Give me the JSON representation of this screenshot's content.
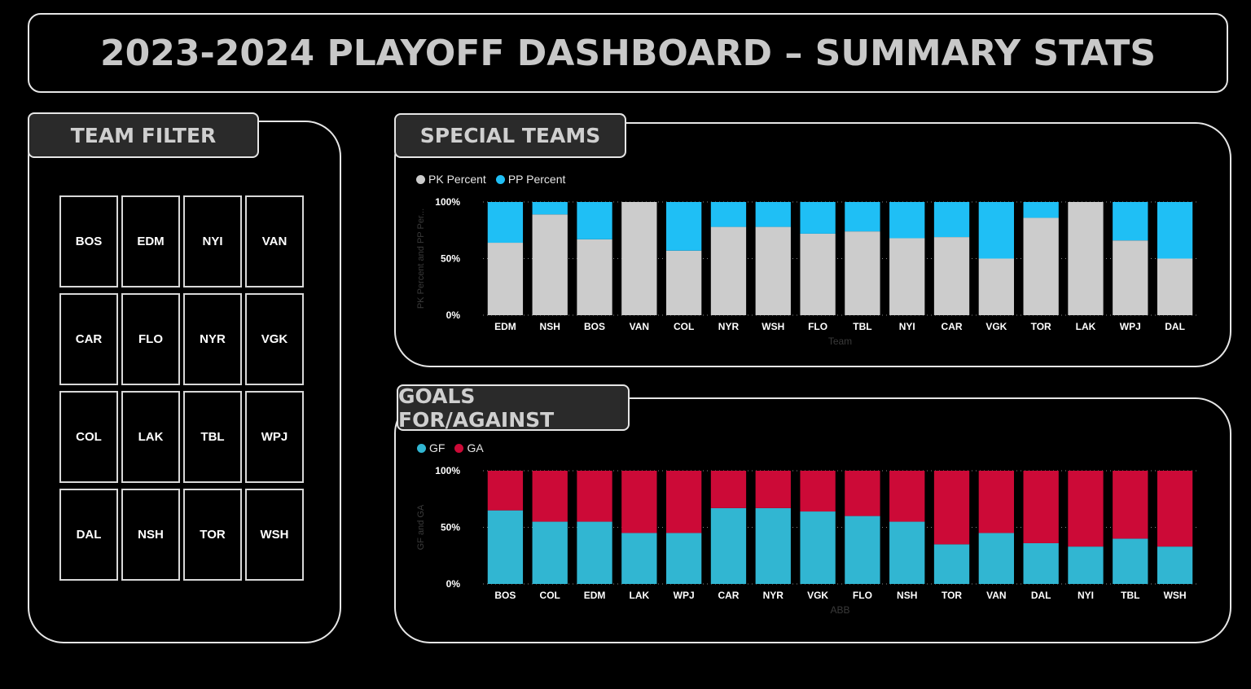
{
  "title": "2023-2024 PLAYOFF DASHBOARD –  SUMMARY STATS",
  "team_filter": {
    "heading": "TEAM FILTER",
    "teams": [
      "BOS",
      "EDM",
      "NYI",
      "VAN",
      "CAR",
      "FLO",
      "NYR",
      "VGK",
      "COL",
      "LAK",
      "TBL",
      "WPJ",
      "DAL",
      "NSH",
      "TOR",
      "WSH"
    ]
  },
  "special_teams": {
    "heading": "SPECIAL TEAMS",
    "legend": [
      {
        "label": "PK Percent",
        "color": "#cccccc"
      },
      {
        "label": "PP Percent",
        "color": "#1fbff5"
      }
    ]
  },
  "goals": {
    "heading": "GOALS FOR/AGAINST",
    "legend": [
      {
        "label": "GF",
        "color": "#31b6d2"
      },
      {
        "label": "GA",
        "color": "#cc0a37"
      }
    ]
  },
  "chart_data": [
    {
      "type": "bar",
      "stacked": "percent",
      "ylabel": "PK Percent and PP Per...",
      "xlabel": "Team",
      "yticks": [
        "0%",
        "50%",
        "100%"
      ],
      "ylim": [
        0,
        100
      ],
      "categories": [
        "EDM",
        "NSH",
        "BOS",
        "VAN",
        "COL",
        "NYR",
        "WSH",
        "FLO",
        "TBL",
        "NYI",
        "CAR",
        "VGK",
        "TOR",
        "LAK",
        "WPJ",
        "DAL"
      ],
      "series": [
        {
          "name": "PK Percent",
          "color": "#cccccc",
          "values": [
            64,
            89,
            67,
            100,
            57,
            78,
            78,
            72,
            74,
            68,
            69,
            50,
            86,
            100,
            66,
            50
          ]
        },
        {
          "name": "PP Percent",
          "color": "#1fbff5",
          "values": [
            36,
            11,
            33,
            0,
            43,
            22,
            22,
            28,
            26,
            32,
            31,
            50,
            14,
            0,
            34,
            50
          ]
        }
      ]
    },
    {
      "type": "bar",
      "stacked": "percent",
      "ylabel": "GF and GA",
      "xlabel": "ABB",
      "yticks": [
        "0%",
        "50%",
        "100%"
      ],
      "ylim": [
        0,
        100
      ],
      "categories": [
        "BOS",
        "COL",
        "EDM",
        "LAK",
        "WPJ",
        "CAR",
        "NYR",
        "VGK",
        "FLO",
        "NSH",
        "TOR",
        "VAN",
        "DAL",
        "NYI",
        "TBL",
        "WSH"
      ],
      "series": [
        {
          "name": "GF",
          "color": "#31b6d2",
          "values": [
            65,
            55,
            55,
            45,
            45,
            67,
            67,
            64,
            60,
            55,
            35,
            45,
            36,
            33,
            40,
            33
          ]
        },
        {
          "name": "GA",
          "color": "#cc0a37",
          "values": [
            35,
            45,
            45,
            55,
            55,
            33,
            33,
            36,
            40,
            45,
            65,
            55,
            64,
            67,
            60,
            67
          ]
        }
      ]
    }
  ]
}
